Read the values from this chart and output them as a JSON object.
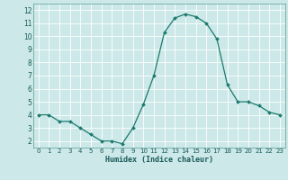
{
  "x": [
    0,
    1,
    2,
    3,
    4,
    5,
    6,
    7,
    8,
    9,
    10,
    11,
    12,
    13,
    14,
    15,
    16,
    17,
    18,
    19,
    20,
    21,
    22,
    23
  ],
  "y": [
    4.0,
    4.0,
    3.5,
    3.5,
    3.0,
    2.5,
    2.0,
    2.0,
    1.8,
    3.0,
    4.8,
    7.0,
    10.3,
    11.4,
    11.7,
    11.5,
    11.0,
    9.8,
    6.3,
    5.0,
    5.0,
    4.7,
    4.2,
    4.0
  ],
  "xlabel": "Humidex (Indice chaleur)",
  "ylim": [
    1.5,
    12.5
  ],
  "xlim": [
    -0.5,
    23.5
  ],
  "yticks": [
    2,
    3,
    4,
    5,
    6,
    7,
    8,
    9,
    10,
    11,
    12
  ],
  "xticks": [
    0,
    1,
    2,
    3,
    4,
    5,
    6,
    7,
    8,
    9,
    10,
    11,
    12,
    13,
    14,
    15,
    16,
    17,
    18,
    19,
    20,
    21,
    22,
    23
  ],
  "line_color": "#1a7a6e",
  "marker_color": "#1a7a6e",
  "bg_color": "#cce8e8",
  "grid_color": "#ffffff",
  "axes_bg": "#cce8e8",
  "tick_label_color": "#1a5a5a",
  "xlabel_color": "#1a5a5a"
}
